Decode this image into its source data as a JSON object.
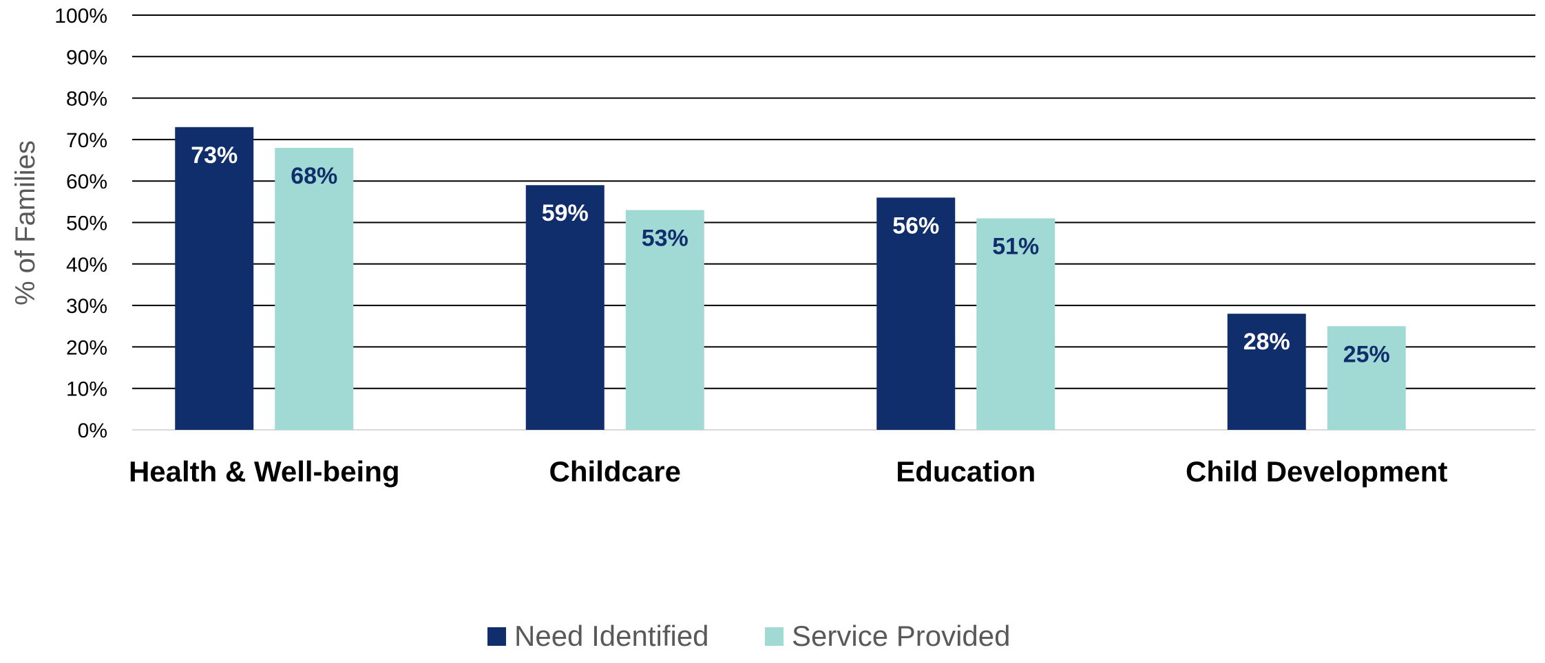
{
  "chart_data": {
    "type": "bar",
    "title": "",
    "xlabel": "",
    "ylabel": "% of Families",
    "ylim": [
      0,
      100
    ],
    "yticks": [
      0,
      10,
      20,
      30,
      40,
      50,
      60,
      70,
      80,
      90,
      100
    ],
    "ytick_labels": [
      "0%",
      "10%",
      "20%",
      "30%",
      "40%",
      "50%",
      "60%",
      "70%",
      "80%",
      "90%",
      "100%"
    ],
    "categories": [
      "Health & Well-being",
      "Childcare",
      "Education",
      "Child Development"
    ],
    "series": [
      {
        "name": "Need Identified",
        "color": "#102D6C",
        "label_color": "#FFFFFF",
        "values": [
          73,
          59,
          56,
          28
        ],
        "data_labels": [
          "73%",
          "59%",
          "56%",
          "28%"
        ]
      },
      {
        "name": "Service Provided",
        "color": "#A1DAD5",
        "label_color": "#102D6C",
        "values": [
          68,
          53,
          51,
          25
        ],
        "data_labels": [
          "68%",
          "53%",
          "51%",
          "25%"
        ]
      }
    ],
    "grid": true,
    "gridline_color": "#000000",
    "legend_position": "bottom"
  }
}
